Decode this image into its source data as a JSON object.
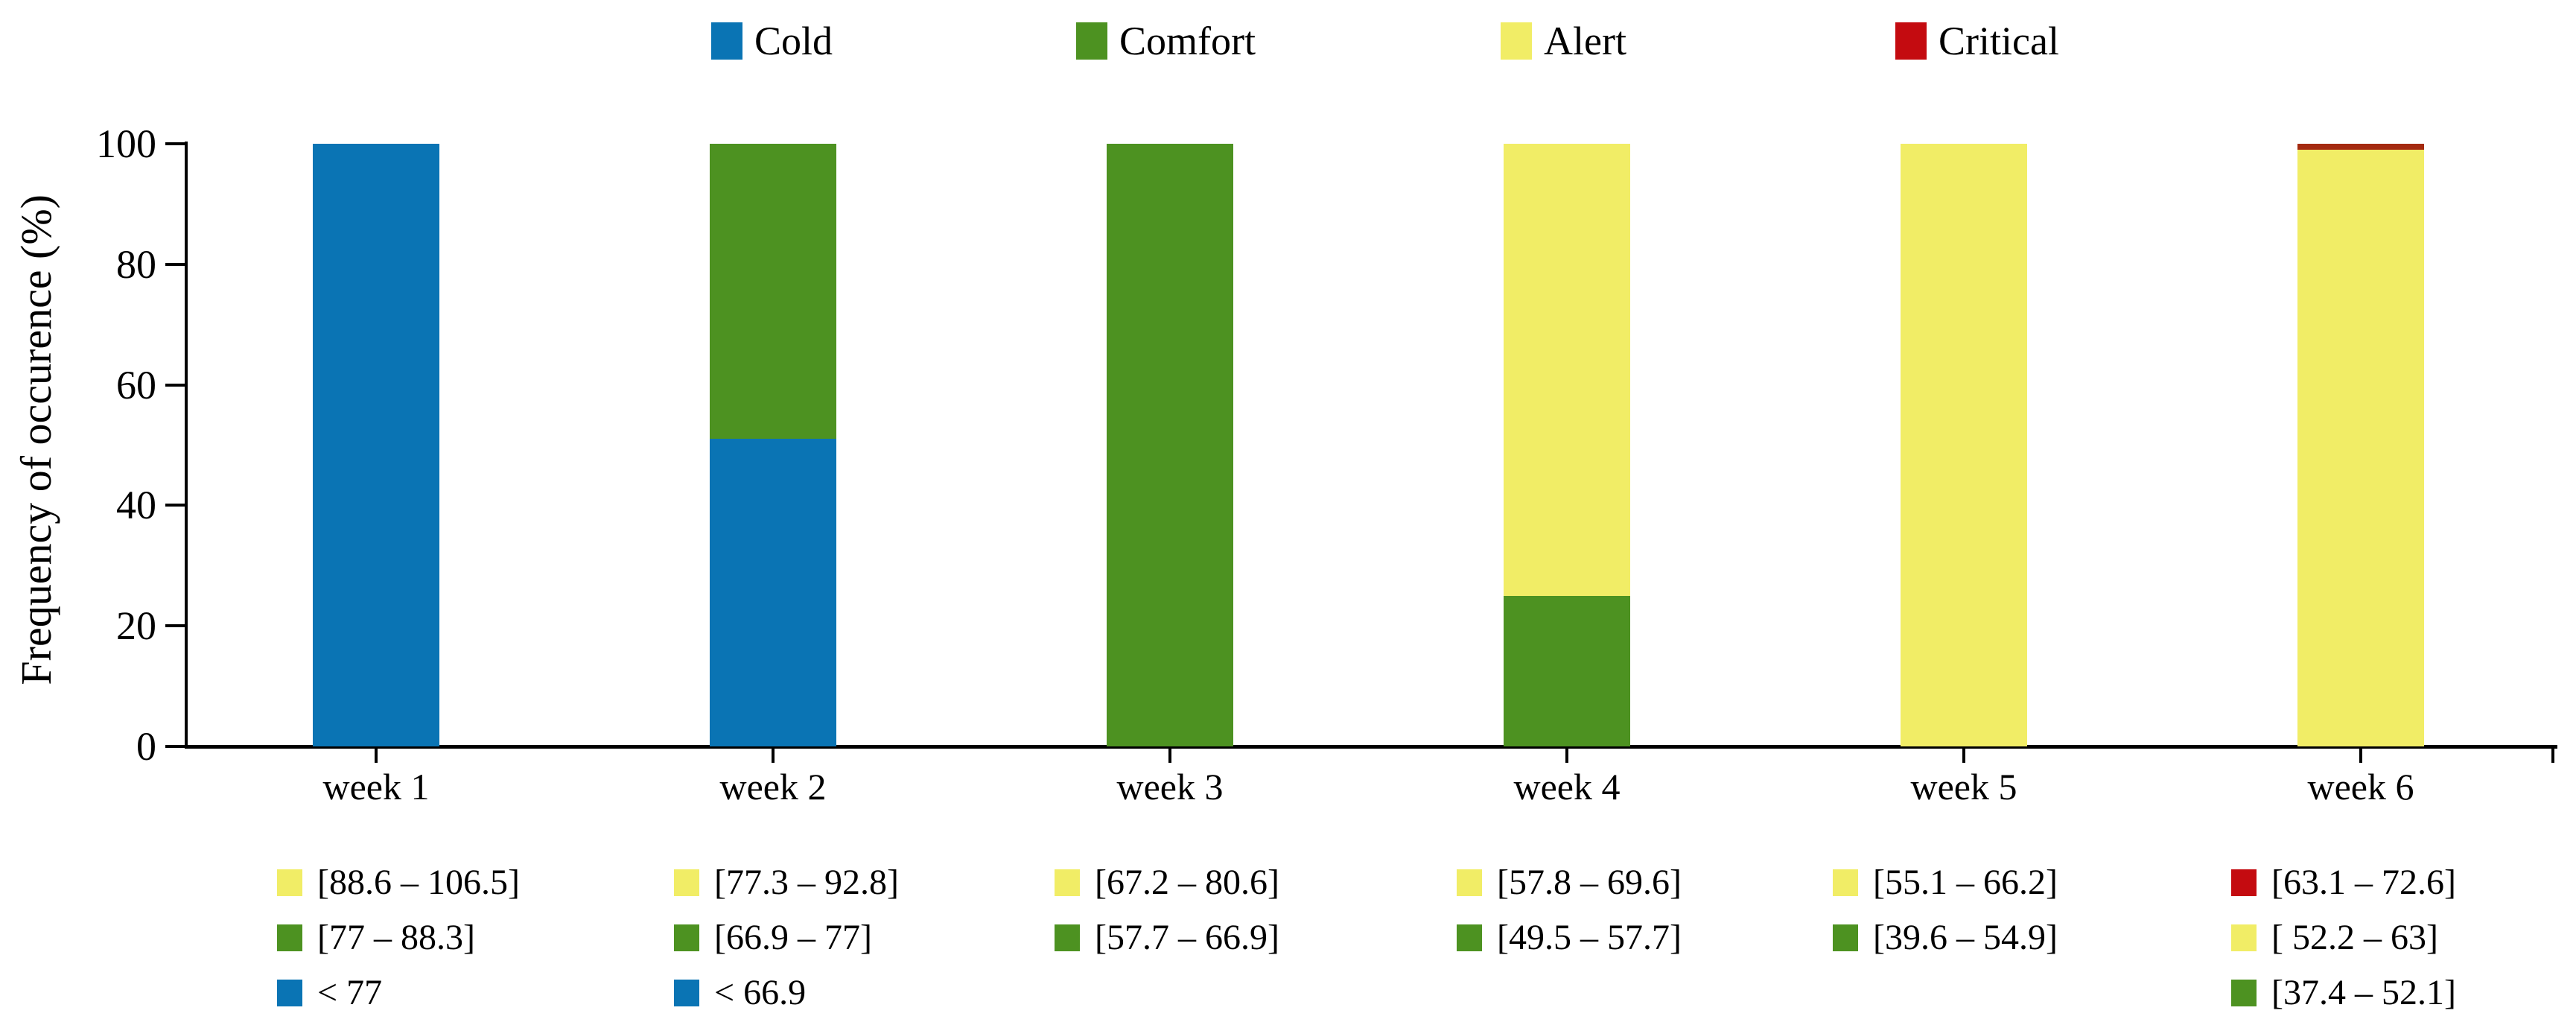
{
  "chart_data": {
    "type": "bar",
    "stacked": true,
    "title": "",
    "xlabel": "",
    "ylabel": "Frequency of occurence (%)",
    "ylim": [
      0,
      100
    ],
    "yticks": [
      0,
      20,
      40,
      60,
      80,
      100
    ],
    "grid": false,
    "legend_position": "top",
    "categories": [
      "week 1",
      "week 2",
      "week 3",
      "week 4",
      "week 5",
      "week 6"
    ],
    "series": [
      {
        "name": "Cold",
        "color": "#0a74b4",
        "values": [
          100,
          51,
          0,
          0,
          0,
          0
        ]
      },
      {
        "name": "Comfort",
        "color": "#4d9221",
        "values": [
          0,
          49,
          100,
          25,
          0,
          0
        ]
      },
      {
        "name": "Alert",
        "color": "#f1ed66",
        "values": [
          0,
          0,
          0,
          75,
          100,
          99
        ]
      },
      {
        "name": "Critical",
        "color": "#c40b10",
        "bar_color": "#a42a10",
        "values": [
          0,
          0,
          0,
          0,
          0,
          1
        ]
      }
    ],
    "threshold_annotations": [
      {
        "category": "week 1",
        "entries": [
          {
            "series": "Alert",
            "text": "[88.6 – 106.5]"
          },
          {
            "series": "Comfort",
            "text": "[77 – 88.3]"
          },
          {
            "series": "Cold",
            "text": "< 77"
          }
        ]
      },
      {
        "category": "week 2",
        "entries": [
          {
            "series": "Alert",
            "text": "[77.3 – 92.8]"
          },
          {
            "series": "Comfort",
            "text": "[66.9 – 77]"
          },
          {
            "series": "Cold",
            "text": "< 66.9"
          }
        ]
      },
      {
        "category": "week 3",
        "entries": [
          {
            "series": "Alert",
            "text": "[67.2 – 80.6]"
          },
          {
            "series": "Comfort",
            "text": "[57.7 – 66.9]"
          }
        ]
      },
      {
        "category": "week 4",
        "entries": [
          {
            "series": "Alert",
            "text": "[57.8 – 69.6]"
          },
          {
            "series": "Comfort",
            "text": "[49.5 – 57.7]"
          }
        ]
      },
      {
        "category": "week 5",
        "entries": [
          {
            "series": "Alert",
            "text": "[55.1 – 66.2]"
          },
          {
            "series": "Comfort",
            "text": "[39.6 – 54.9]"
          }
        ]
      },
      {
        "category": "week 6",
        "entries": [
          {
            "series": "Critical",
            "text": "[63.1 – 72.6]"
          },
          {
            "series": "Alert",
            "text": "[ 52.2 – 63]"
          },
          {
            "series": "Comfort",
            "text": "[37.4 – 52.1]"
          }
        ]
      }
    ]
  }
}
